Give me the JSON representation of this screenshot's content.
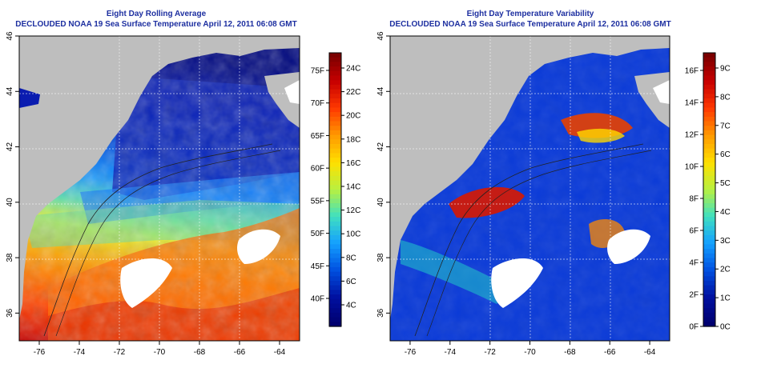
{
  "panel_left": {
    "title1": "Eight Day Rolling Average",
    "title2": "DECLOUDED NOAA 19 Sea Surface Temperature April 12, 2011 06:08 GMT",
    "x_ticks": [
      "-76",
      "-74",
      "-72",
      "-70",
      "-68",
      "-66",
      "-64"
    ],
    "y_ticks": [
      "36",
      "38",
      "40",
      "42",
      "44",
      "46"
    ],
    "colorbar_f": [
      "75F",
      "70F",
      "65F",
      "60F",
      "55F",
      "50F",
      "45F",
      "40F"
    ],
    "colorbar_c": [
      "24C",
      "22C",
      "20C",
      "18C",
      "16C",
      "14C",
      "12C",
      "10C",
      "8C",
      "6C",
      "4C"
    ],
    "colorbar_colors": [
      "#7a0000",
      "#c80000",
      "#ff3a00",
      "#ff9a00",
      "#ffe000",
      "#b8f040",
      "#40e0c0",
      "#14a0ff",
      "#0050e0",
      "#0010a0",
      "#000070"
    ]
  },
  "panel_right": {
    "title1": "Eight Day Temperature Variability",
    "title2": "DECLOUDED NOAA 19 Sea Surface Temperature April 12, 2011 06:08 GMT",
    "x_ticks": [
      "-76",
      "-74",
      "-72",
      "-70",
      "-68",
      "-66",
      "-64"
    ],
    "y_ticks": [
      "36",
      "38",
      "40",
      "42",
      "44",
      "46"
    ],
    "colorbar_f": [
      "16F",
      "14F",
      "12F",
      "10F",
      "8F",
      "6F",
      "4F",
      "2F",
      "0F"
    ],
    "colorbar_c": [
      "9C",
      "8C",
      "7C",
      "6C",
      "5C",
      "4C",
      "3C",
      "2C",
      "1C",
      "0C"
    ],
    "colorbar_colors": [
      "#7a0000",
      "#c80000",
      "#ff3a00",
      "#ff9a00",
      "#ffe000",
      "#b8f040",
      "#40e0c0",
      "#14a0ff",
      "#0050e0",
      "#0010a0",
      "#000070"
    ]
  },
  "map": {
    "lon_range": [
      -77,
      -63
    ],
    "lat_range": [
      35,
      46
    ],
    "land_color": "#bebebe",
    "cloud_color": "#ffffff",
    "grid": true
  },
  "chart_data": [
    {
      "type": "heatmap",
      "title": "Eight Day Rolling Average",
      "subtitle": "DECLOUDED NOAA 19 Sea Surface Temperature April 12, 2011 06:08 GMT",
      "xlim": [
        -77,
        -63
      ],
      "ylim": [
        35,
        46
      ],
      "colorbar_range_c": [
        3,
        25
      ],
      "grid": true
    },
    {
      "type": "heatmap",
      "title": "Eight Day Temperature Variability",
      "subtitle": "DECLOUDED NOAA 19 Sea Surface Temperature April 12, 2011 06:08 GMT",
      "xlim": [
        -77,
        -63
      ],
      "ylim": [
        35,
        46
      ],
      "colorbar_range_c": [
        0,
        9.5
      ],
      "grid": true
    }
  ]
}
